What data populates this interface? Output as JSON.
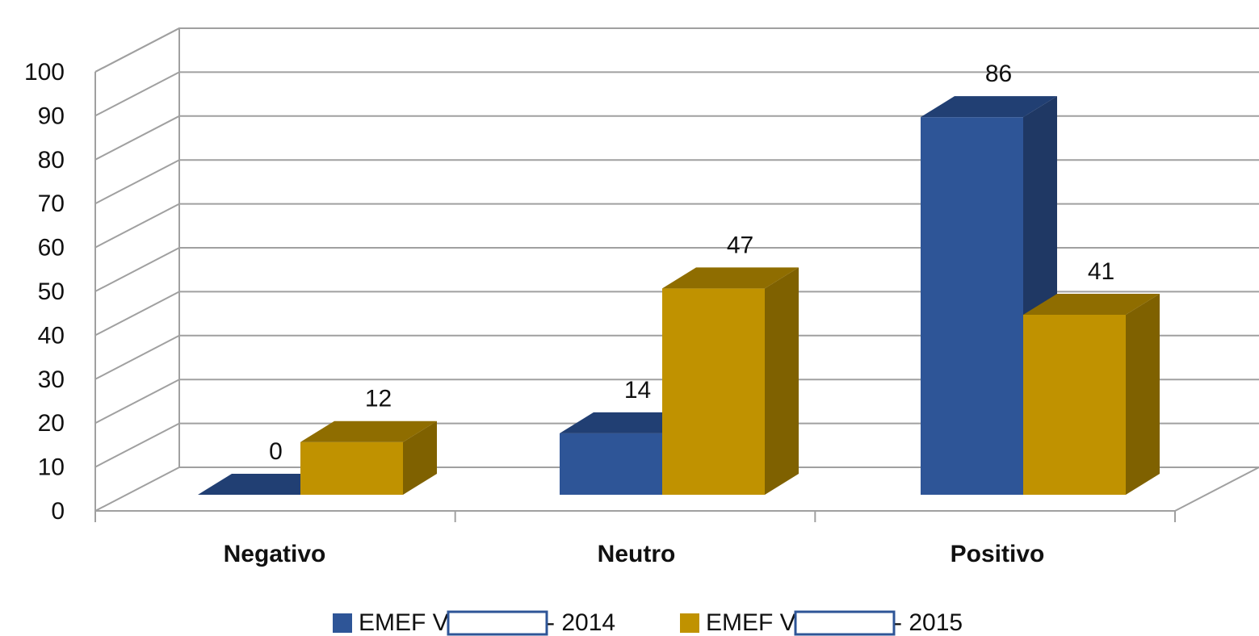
{
  "chart_data": {
    "type": "bar",
    "title": "",
    "xlabel": "",
    "ylabel": "",
    "categories": [
      "Negativo",
      "Neutro",
      "Positivo"
    ],
    "series": [
      {
        "name": "EMEF V - 2014",
        "values": [
          0,
          14,
          86
        ],
        "color": "#2E5597",
        "side_color": "#1F3864",
        "top_color": "#213F73"
      },
      {
        "name": "EMEF V - 2015",
        "values": [
          12,
          47,
          41
        ],
        "color": "#C09200",
        "side_color": "#7F6100",
        "top_color": "#8F6D00"
      }
    ],
    "ylim": [
      0,
      100
    ],
    "y_ticks": [
      "0",
      "10",
      "20",
      "30",
      "40",
      "50",
      "60",
      "70",
      "80",
      "90",
      "100"
    ],
    "grid": true,
    "legend": {
      "position": "bottom",
      "entries": [
        {
          "prefix": "EMEF V",
          "suffix": "- 2014",
          "color": "#2E5597"
        },
        {
          "prefix": "EMEF V",
          "suffix": "- 2015",
          "color": "#C09200"
        }
      ]
    },
    "style": "3d-clustered-column",
    "grid_color": "#A0A0A0",
    "redaction_box_color": "#2E5597"
  }
}
